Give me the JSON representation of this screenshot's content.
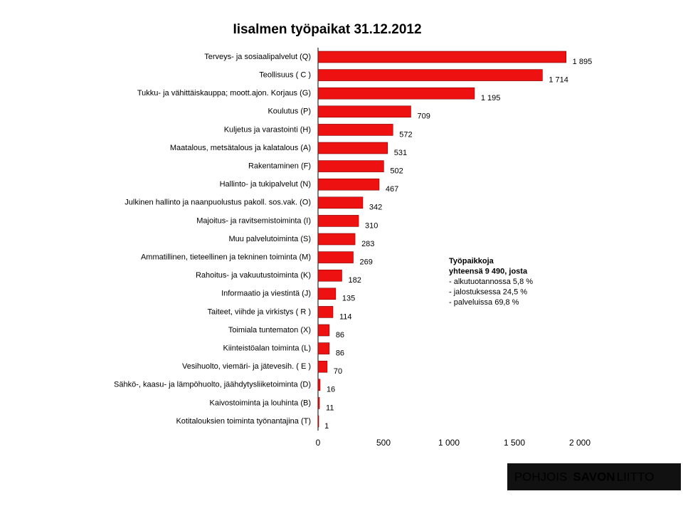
{
  "chart_data": {
    "type": "bar",
    "orientation": "horizontal",
    "title": "Iisalmen työpaikat 31.12.2012",
    "categories": [
      "Terveys- ja sosiaalipalvelut (Q)",
      "Teollisuus ( C )",
      "Tukku- ja vähittäiskauppa; moott.ajon. Korjaus (G)",
      "Koulutus (P)",
      "Kuljetus ja varastointi (H)",
      "Maatalous, metsätalous ja kalatalous (A)",
      "Rakentaminen (F)",
      "Hallinto- ja tukipalvelut (N)",
      "Julkinen hallinto ja naanpuolustus pakoll. sos.vak. (O)",
      "Majoitus- ja ravitsemistoiminta (I)",
      "Muu palvelutoiminta (S)",
      "Ammatillinen, tieteellinen ja tekninen toiminta (M)",
      "Rahoitus- ja vakuutustoiminta (K)",
      "Informaatio ja viestintä (J)",
      "Taiteet, viihde ja virkistys ( R )",
      "Toimiala tuntematon (X)",
      "Kiinteistöalan toiminta (L)",
      "Vesihuolto, viemäri- ja jätevesih. ( E )",
      "Sähkö-, kaasu- ja lämpöhuolto, jäähdytysliiketoiminta (D)",
      "Kaivostoiminta ja louhinta (B)",
      "Kotitalouksien toiminta työnantajina (T)"
    ],
    "values": [
      1895,
      1714,
      1195,
      709,
      572,
      531,
      502,
      467,
      342,
      310,
      283,
      269,
      182,
      135,
      114,
      86,
      86,
      70,
      16,
      11,
      1
    ],
    "value_labels": [
      "1 895",
      "1 714",
      "1 195",
      "709",
      "572",
      "531",
      "502",
      "467",
      "342",
      "310",
      "283",
      "269",
      "182",
      "135",
      "114",
      "86",
      "86",
      "70",
      "16",
      "11",
      "1"
    ],
    "color": "#ee1111",
    "xlim": [
      0,
      2000
    ],
    "xticks": [
      0,
      500,
      {
        "value": 1000,
        "label": "1 000"
      },
      {
        "value": 1500,
        "label": "1 500"
      },
      {
        "value": 2000,
        "label": "2 000"
      }
    ],
    "annotation": [
      "Työpaikkoja",
      "yhteensä 9 490, josta",
      "- alkutuotannossa 5,8 %",
      "- jalostuksessa 24,5 %",
      "- palveluissa 69,8 %"
    ]
  },
  "logo": [
    "POHJOIS",
    "SAVON",
    "LIITTO"
  ]
}
